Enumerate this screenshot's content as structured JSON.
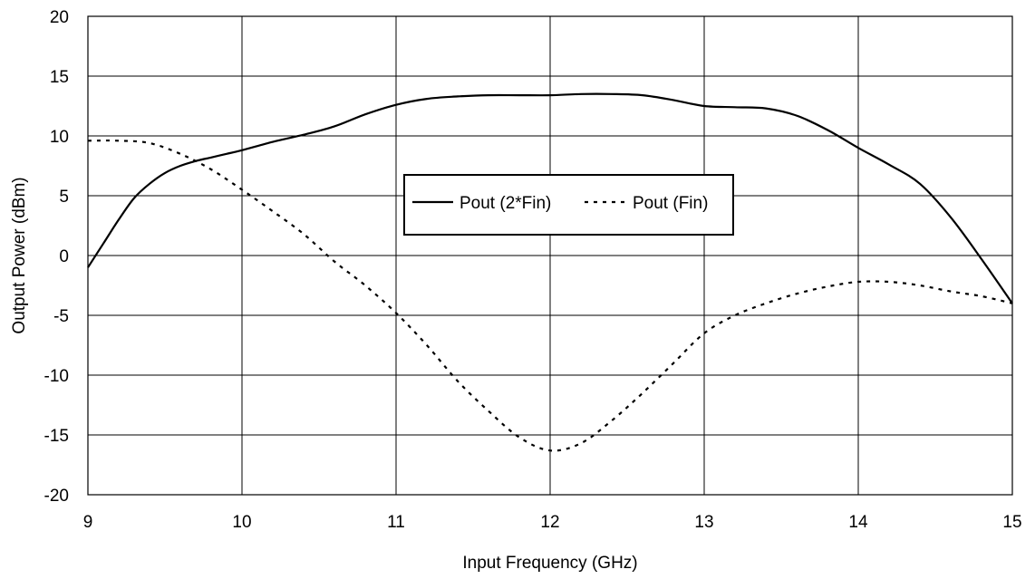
{
  "chart_data": {
    "type": "line",
    "title": "",
    "xlabel": "Input Frequency (GHz)",
    "ylabel": "Output Power (dBm)",
    "xlim": [
      9,
      15
    ],
    "ylim": [
      -20,
      20
    ],
    "x_ticks": [
      9,
      10,
      11,
      12,
      13,
      14,
      15
    ],
    "y_ticks": [
      -20,
      -15,
      -10,
      -5,
      0,
      5,
      10,
      15,
      20
    ],
    "x_tick_labels": [
      "9",
      "10",
      "11",
      "12",
      "13",
      "14",
      "15"
    ],
    "y_tick_labels": [
      "-20",
      "-15",
      "-10",
      "-5",
      "0",
      "5",
      "10",
      "15",
      "20"
    ],
    "grid": true,
    "legend_position": "center",
    "series": [
      {
        "name": "Pout (2*Fin)",
        "style": "solid",
        "color": "#000000",
        "x": [
          9.0,
          9.1,
          9.2,
          9.3,
          9.4,
          9.5,
          9.6,
          9.7,
          9.8,
          9.9,
          10.0,
          10.2,
          10.4,
          10.6,
          10.8,
          11.0,
          11.2,
          11.4,
          11.6,
          11.8,
          12.0,
          12.2,
          12.4,
          12.6,
          12.8,
          13.0,
          13.2,
          13.4,
          13.6,
          13.8,
          14.0,
          14.2,
          14.4,
          14.6,
          14.8,
          15.0
        ],
        "y": [
          -1.0,
          1.0,
          3.0,
          4.8,
          6.0,
          6.9,
          7.5,
          7.9,
          8.2,
          8.5,
          8.8,
          9.5,
          10.1,
          10.8,
          11.8,
          12.6,
          13.1,
          13.3,
          13.4,
          13.4,
          13.4,
          13.5,
          13.5,
          13.4,
          13.0,
          12.5,
          12.4,
          12.3,
          11.7,
          10.5,
          9.0,
          7.6,
          6.0,
          3.2,
          -0.3,
          -4.0
        ]
      },
      {
        "name": "Pout (Fin)",
        "style": "dashed",
        "color": "#000000",
        "x": [
          9.0,
          9.2,
          9.4,
          9.6,
          9.8,
          10.0,
          10.2,
          10.4,
          10.6,
          10.8,
          11.0,
          11.2,
          11.4,
          11.6,
          11.8,
          12.0,
          12.2,
          12.4,
          12.6,
          12.8,
          13.0,
          13.2,
          13.4,
          13.6,
          13.8,
          14.0,
          14.2,
          14.4,
          14.6,
          14.8,
          15.0
        ],
        "y": [
          9.6,
          9.6,
          9.4,
          8.5,
          7.2,
          5.5,
          3.7,
          1.8,
          -0.5,
          -2.5,
          -4.8,
          -7.5,
          -10.5,
          -13.0,
          -15.2,
          -16.3,
          -15.7,
          -13.8,
          -11.5,
          -9.0,
          -6.5,
          -5.0,
          -4.0,
          -3.2,
          -2.6,
          -2.2,
          -2.2,
          -2.5,
          -3.0,
          -3.4,
          -4.0
        ]
      }
    ]
  }
}
